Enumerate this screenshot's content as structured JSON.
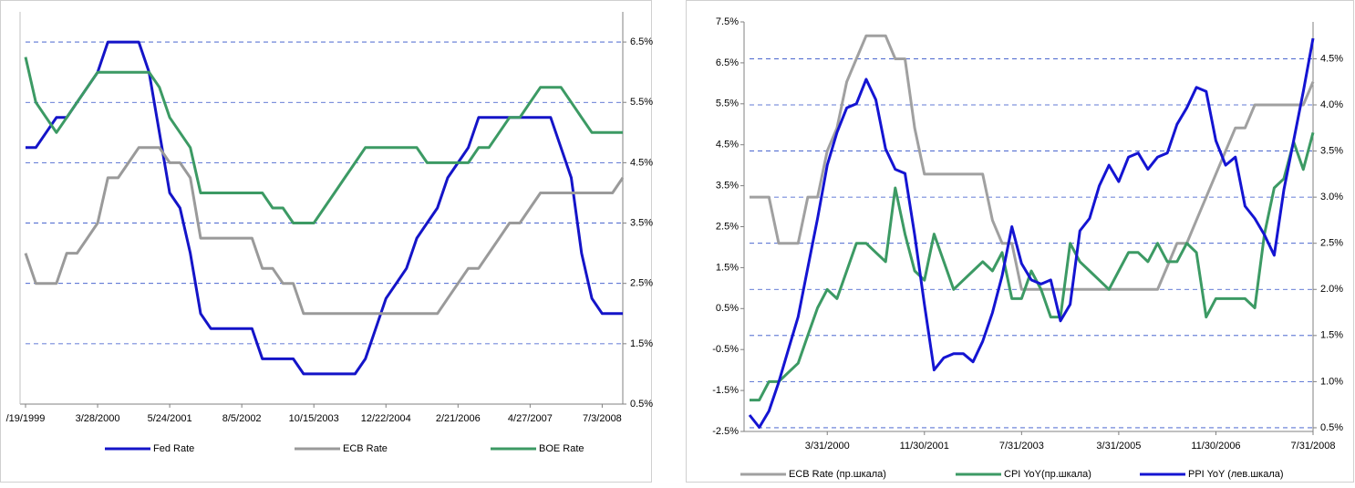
{
  "chart_data": [
    {
      "type": "line",
      "y_axis_side": "right",
      "grid": true,
      "categories": [
        "/19/1999",
        null,
        null,
        null,
        null,
        null,
        null,
        "3/28/2000",
        null,
        null,
        null,
        null,
        null,
        null,
        "5/24/2001",
        null,
        null,
        null,
        null,
        null,
        null,
        "8/5/2002",
        null,
        null,
        null,
        null,
        null,
        null,
        "10/15/2003",
        null,
        null,
        null,
        null,
        null,
        null,
        "12/22/2004",
        null,
        null,
        null,
        null,
        null,
        null,
        "2/21/2006",
        null,
        null,
        null,
        null,
        null,
        null,
        "4/27/2007",
        null,
        null,
        null,
        null,
        null,
        null,
        "7/3/2008",
        null,
        null
      ],
      "ylim": [
        0.5,
        7.0
      ],
      "yticks": [
        {
          "value": 0.5,
          "label": "0.5%"
        },
        {
          "value": 1.5,
          "label": "1.5%"
        },
        {
          "value": 2.5,
          "label": "2.5%"
        },
        {
          "value": 3.5,
          "label": "3.5%"
        },
        {
          "value": 4.5,
          "label": "4.5%"
        },
        {
          "value": 5.5,
          "label": "5.5%"
        },
        {
          "value": 6.5,
          "label": "6.5%"
        }
      ],
      "series": [
        {
          "name": "Fed Rate",
          "color": "#1414c8",
          "values": [
            4.75,
            4.75,
            5.0,
            5.25,
            5.25,
            5.5,
            5.75,
            6.0,
            6.5,
            6.5,
            6.5,
            6.5,
            6.0,
            5.0,
            4.0,
            3.75,
            3.0,
            2.0,
            1.75,
            1.75,
            1.75,
            1.75,
            1.75,
            1.25,
            1.25,
            1.25,
            1.25,
            1.0,
            1.0,
            1.0,
            1.0,
            1.0,
            1.0,
            1.25,
            1.75,
            2.25,
            2.5,
            2.75,
            3.25,
            3.5,
            3.75,
            4.25,
            4.5,
            4.75,
            5.25,
            5.25,
            5.25,
            5.25,
            5.25,
            5.25,
            5.25,
            5.25,
            4.75,
            4.25,
            3.0,
            2.25,
            2.0,
            2.0,
            2.0
          ]
        },
        {
          "name": "ECB Rate",
          "color": "#9a9a9a",
          "values": [
            3.0,
            2.5,
            2.5,
            2.5,
            3.0,
            3.0,
            3.25,
            3.5,
            4.25,
            4.25,
            4.5,
            4.75,
            4.75,
            4.75,
            4.5,
            4.5,
            4.25,
            3.25,
            3.25,
            3.25,
            3.25,
            3.25,
            3.25,
            2.75,
            2.75,
            2.5,
            2.5,
            2.0,
            2.0,
            2.0,
            2.0,
            2.0,
            2.0,
            2.0,
            2.0,
            2.0,
            2.0,
            2.0,
            2.0,
            2.0,
            2.0,
            2.25,
            2.5,
            2.75,
            2.75,
            3.0,
            3.25,
            3.5,
            3.5,
            3.75,
            4.0,
            4.0,
            4.0,
            4.0,
            4.0,
            4.0,
            4.0,
            4.0,
            4.25
          ]
        },
        {
          "name": "BOE Rate",
          "color": "#3c9a64",
          "values": [
            6.25,
            5.5,
            5.25,
            5.0,
            5.25,
            5.5,
            5.75,
            6.0,
            6.0,
            6.0,
            6.0,
            6.0,
            6.0,
            5.75,
            5.25,
            5.0,
            4.75,
            4.0,
            4.0,
            4.0,
            4.0,
            4.0,
            4.0,
            4.0,
            3.75,
            3.75,
            3.5,
            3.5,
            3.5,
            3.75,
            4.0,
            4.25,
            4.5,
            4.75,
            4.75,
            4.75,
            4.75,
            4.75,
            4.75,
            4.5,
            4.5,
            4.5,
            4.5,
            4.5,
            4.75,
            4.75,
            5.0,
            5.25,
            5.25,
            5.5,
            5.75,
            5.75,
            5.75,
            5.5,
            5.25,
            5.0,
            5.0,
            5.0,
            5.0
          ]
        }
      ]
    },
    {
      "type": "line",
      "y_axis_side": "left",
      "grid": true,
      "grid_axis": "y2",
      "categories": [
        null,
        null,
        null,
        null,
        null,
        null,
        null,
        null,
        "3/31/2000",
        null,
        null,
        null,
        null,
        null,
        null,
        null,
        null,
        null,
        "11/30/2001",
        null,
        null,
        null,
        null,
        null,
        null,
        null,
        null,
        null,
        "7/31/2003",
        null,
        null,
        null,
        null,
        null,
        null,
        null,
        null,
        null,
        "3/31/2005",
        null,
        null,
        null,
        null,
        null,
        null,
        null,
        null,
        null,
        "11/30/2006",
        null,
        null,
        null,
        null,
        null,
        null,
        null,
        null,
        null,
        "7/31/2008"
      ],
      "ylim": [
        -2.5,
        7.5
      ],
      "yticks": [
        {
          "value": -2.5,
          "label": "-2.5%"
        },
        {
          "value": -1.5,
          "label": "-1.5%"
        },
        {
          "value": -0.5,
          "label": "-0.5%"
        },
        {
          "value": 0.5,
          "label": "0.5%"
        },
        {
          "value": 1.5,
          "label": "1.5%"
        },
        {
          "value": 2.5,
          "label": "2.5%"
        },
        {
          "value": 3.5,
          "label": "3.5%"
        },
        {
          "value": 4.5,
          "label": "4.5%"
        },
        {
          "value": 5.5,
          "label": "5.5%"
        },
        {
          "value": 6.5,
          "label": "6.5%"
        },
        {
          "value": 7.5,
          "label": "7.5%"
        }
      ],
      "y2lim": [
        0.46,
        4.9
      ],
      "y2ticks": [
        {
          "value": 0.5,
          "label": "0.5%"
        },
        {
          "value": 1.0,
          "label": "1.0%"
        },
        {
          "value": 1.5,
          "label": "1.5%"
        },
        {
          "value": 2.0,
          "label": "2.0%"
        },
        {
          "value": 2.5,
          "label": "2.5%"
        },
        {
          "value": 3.0,
          "label": "3.0%"
        },
        {
          "value": 3.5,
          "label": "3.5%"
        },
        {
          "value": 4.0,
          "label": "4.0%"
        },
        {
          "value": 4.5,
          "label": "4.5%"
        }
      ],
      "series": [
        {
          "name": "ECB Rate (пр.шкала)",
          "color": "#a0a0a0",
          "axis": "y2",
          "values": [
            3.0,
            3.0,
            3.0,
            2.5,
            2.5,
            2.5,
            3.0,
            3.0,
            3.5,
            3.75,
            4.25,
            4.5,
            4.75,
            4.75,
            4.75,
            4.5,
            4.5,
            3.75,
            3.25,
            3.25,
            3.25,
            3.25,
            3.25,
            3.25,
            3.25,
            2.75,
            2.5,
            2.5,
            2.0,
            2.0,
            2.0,
            2.0,
            2.0,
            2.0,
            2.0,
            2.0,
            2.0,
            2.0,
            2.0,
            2.0,
            2.0,
            2.0,
            2.0,
            2.25,
            2.5,
            2.5,
            2.75,
            3.0,
            3.25,
            3.5,
            3.75,
            3.75,
            4.0,
            4.0,
            4.0,
            4.0,
            4.0,
            4.0,
            4.25
          ]
        },
        {
          "name": "CPI YoY(пр.шкала)",
          "color": "#3c9a64",
          "axis": "y2",
          "values": [
            0.8,
            0.8,
            1.0,
            1.0,
            1.1,
            1.2,
            1.5,
            1.8,
            2.0,
            1.9,
            2.2,
            2.5,
            2.5,
            2.4,
            2.3,
            3.1,
            2.6,
            2.2,
            2.1,
            2.6,
            2.3,
            2.0,
            2.1,
            2.2,
            2.3,
            2.2,
            2.4,
            1.9,
            1.9,
            2.2,
            2.0,
            1.7,
            1.7,
            2.5,
            2.3,
            2.2,
            2.1,
            2.0,
            2.2,
            2.4,
            2.4,
            2.3,
            2.5,
            2.3,
            2.3,
            2.5,
            2.4,
            1.7,
            1.9,
            1.9,
            1.9,
            1.9,
            1.8,
            2.6,
            3.1,
            3.2,
            3.6,
            3.3,
            3.7
          ]
        },
        {
          "name": "PPI YoY (лев.шкала)",
          "color": "#1414d2",
          "axis": "y",
          "values": [
            -2.1,
            -2.4,
            -2.0,
            -1.3,
            -0.5,
            0.3,
            1.5,
            2.7,
            4.0,
            4.8,
            5.4,
            5.5,
            6.1,
            5.6,
            4.4,
            3.9,
            3.8,
            2.3,
            0.6,
            -1.0,
            -0.7,
            -0.6,
            -0.6,
            -0.8,
            -0.3,
            0.4,
            1.3,
            2.5,
            1.6,
            1.2,
            1.1,
            1.2,
            0.2,
            0.6,
            2.4,
            2.7,
            3.5,
            4.0,
            3.6,
            4.2,
            4.3,
            3.9,
            4.2,
            4.3,
            5.0,
            5.4,
            5.9,
            5.8,
            4.6,
            4.0,
            4.2,
            3.0,
            2.7,
            2.3,
            1.8,
            3.4,
            4.6,
            5.8,
            7.1
          ]
        }
      ]
    }
  ]
}
